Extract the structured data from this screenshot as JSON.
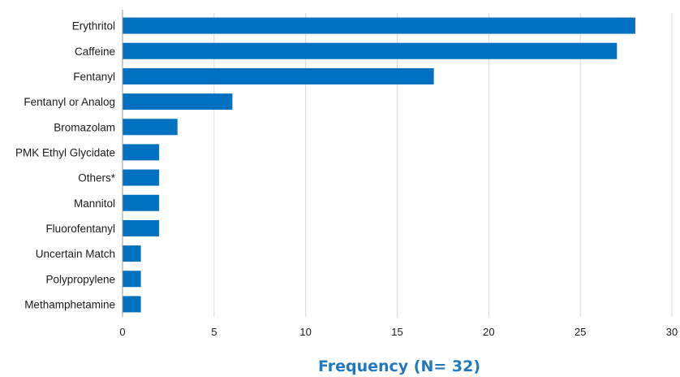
{
  "chart_data": {
    "type": "bar",
    "orientation": "horizontal",
    "categories": [
      "Erythritol",
      "Caffeine",
      "Fentanyl",
      "Fentanyl or Analog",
      "Bromazolam",
      "PMK Ethyl Glycidate",
      "Others*",
      "Mannitol",
      "Fluorofentanyl",
      "Uncertain Match",
      "Polypropylene",
      "Methamphetamine"
    ],
    "values": [
      28,
      27,
      17,
      6,
      3,
      2,
      2,
      2,
      2,
      1,
      1,
      1
    ],
    "xlabel": "Frequency (N= 32)",
    "xlim": [
      0,
      30
    ],
    "xticks": [
      0,
      5,
      10,
      15,
      20,
      25,
      30
    ],
    "grid": true,
    "legend": "none",
    "bar_color": "#0070c0",
    "xlabel_color": "#1f78c1"
  }
}
